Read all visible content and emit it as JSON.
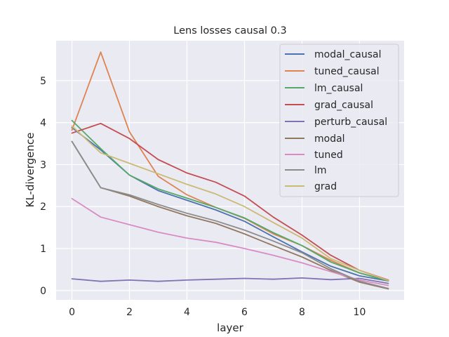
{
  "chart_data": {
    "type": "line",
    "title": "Lens losses causal 0.3",
    "xlabel": "layer",
    "ylabel": "KL-divergence",
    "x": [
      0,
      1,
      2,
      3,
      4,
      5,
      6,
      7,
      8,
      9,
      10,
      11
    ],
    "xlim": [
      -0.55,
      11.55
    ],
    "ylim": [
      -0.22,
      5.95
    ],
    "x_ticks": [
      0,
      2,
      4,
      6,
      8,
      10
    ],
    "y_ticks": [
      0,
      1,
      2,
      3,
      4,
      5
    ],
    "grid": true,
    "legend_position": "top-right",
    "background_color": "#eaeaf2",
    "grid_color": "#ffffff",
    "series": [
      {
        "name": "modal_causal",
        "color": "#4c72b0",
        "values": [
          3.88,
          3.35,
          2.75,
          2.38,
          2.15,
          1.92,
          1.65,
          1.28,
          0.92,
          0.58,
          0.35,
          0.23
        ]
      },
      {
        "name": "tuned_causal",
        "color": "#dd8452",
        "values": [
          3.82,
          5.68,
          3.78,
          2.72,
          2.28,
          1.98,
          1.72,
          1.35,
          1.07,
          0.72,
          0.42,
          0.24
        ]
      },
      {
        "name": "lm_causal",
        "color": "#55a868",
        "values": [
          4.05,
          3.38,
          2.75,
          2.42,
          2.2,
          1.98,
          1.73,
          1.38,
          1.07,
          0.68,
          0.42,
          0.23
        ]
      },
      {
        "name": "grad_causal",
        "color": "#c44e52",
        "values": [
          3.75,
          3.98,
          3.62,
          3.12,
          2.8,
          2.58,
          2.25,
          1.75,
          1.32,
          0.84,
          0.48,
          0.25
        ]
      },
      {
        "name": "perturb_causal",
        "color": "#8172b3",
        "values": [
          0.28,
          0.22,
          0.25,
          0.22,
          0.25,
          0.27,
          0.29,
          0.27,
          0.3,
          0.26,
          0.29,
          0.17
        ]
      },
      {
        "name": "modal",
        "color": "#937860",
        "values": [
          3.55,
          2.45,
          2.25,
          2.0,
          1.78,
          1.6,
          1.35,
          1.07,
          0.8,
          0.48,
          0.2,
          0.04
        ]
      },
      {
        "name": "tuned",
        "color": "#da8bc3",
        "values": [
          2.19,
          1.75,
          1.57,
          1.39,
          1.25,
          1.15,
          1.0,
          0.84,
          0.66,
          0.45,
          0.25,
          0.12
        ]
      },
      {
        "name": "lm",
        "color": "#8c8c8c",
        "values": [
          3.55,
          2.45,
          2.28,
          2.05,
          1.84,
          1.66,
          1.44,
          1.18,
          0.9,
          0.52,
          0.22,
          0.05
        ]
      },
      {
        "name": "grad",
        "color": "#ccb974",
        "values": [
          3.92,
          3.28,
          3.03,
          2.78,
          2.53,
          2.3,
          2.0,
          1.62,
          1.25,
          0.76,
          0.48,
          0.24
        ]
      }
    ]
  }
}
